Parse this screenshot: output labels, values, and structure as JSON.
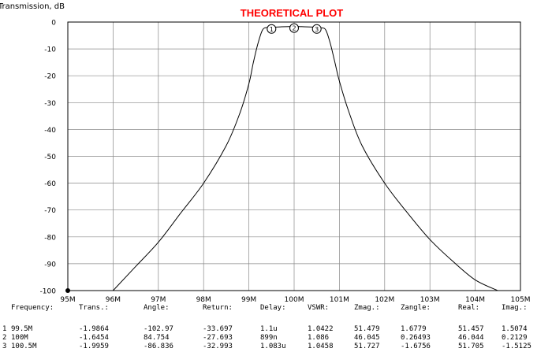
{
  "chart_data": {
    "type": "line",
    "title": "THEORETICAL PLOT",
    "ylabel": "Transmission, dB",
    "xlabel": "",
    "xlim": [
      95,
      105
    ],
    "ylim": [
      -100,
      0
    ],
    "grid": true,
    "x_ticks": [
      "95M",
      "96M",
      "97M",
      "98M",
      "99M",
      "100M",
      "101M",
      "102M",
      "103M",
      "104M",
      "105M"
    ],
    "y_ticks": [
      "0",
      "-10",
      "-20",
      "-30",
      "-40",
      "-50",
      "-60",
      "-70",
      "-80",
      "-90",
      "-100"
    ],
    "series": [
      {
        "color": "#000000",
        "x": [
          96.0,
          96.5,
          97.0,
          97.5,
          98.0,
          98.5,
          98.8,
          99.0,
          99.1,
          99.2,
          99.3,
          99.4,
          99.5,
          99.7,
          100.0,
          100.3,
          100.5,
          100.6,
          100.7,
          100.8,
          100.9,
          101.0,
          101.2,
          101.5,
          102.0,
          102.5,
          103.0,
          103.5,
          104.0,
          104.5
        ],
        "y": [
          -100,
          -91,
          -82,
          -71,
          -60,
          -46,
          -34,
          -23,
          -15,
          -8,
          -3,
          -2,
          -1.99,
          -1.8,
          -1.65,
          -1.8,
          -1.96,
          -2.1,
          -3,
          -8,
          -15,
          -22,
          -33,
          -46,
          -60,
          -71,
          -81,
          -89,
          -96,
          -100
        ]
      }
    ],
    "markers": [
      {
        "label": "1",
        "x": 99.5,
        "y": -1.9864
      },
      {
        "label": "2",
        "x": 100.0,
        "y": -1.6454
      },
      {
        "label": "3",
        "x": 100.5,
        "y": -1.9959
      }
    ]
  },
  "table": {
    "headers": [
      "Frequency:",
      "Trans.:",
      "Angle:",
      "Return:",
      "Delay:",
      "VSWR:",
      "Zmag.:",
      "Zangle:",
      "Real:",
      "Imag.:"
    ],
    "rows": [
      {
        "index": "1",
        "frequency": "99.5M",
        "trans": "-1.9864",
        "angle": "-102.97",
        "return": "-33.697",
        "delay": "1.1u",
        "vswr": "1.0422",
        "zmag": "51.479",
        "zangle": "1.6779",
        "real": "51.457",
        "imag": "1.5074"
      },
      {
        "index": "2",
        "frequency": "100M",
        "trans": "-1.6454",
        "angle": "84.754",
        "return": "-27.693",
        "delay": "899n",
        "vswr": "1.086",
        "zmag": "46.045",
        "zangle": "0.26493",
        "real": "46.044",
        "imag": "0.2129"
      },
      {
        "index": "3",
        "frequency": "100.5M",
        "trans": "-1.9959",
        "angle": "-86.836",
        "return": "-32.993",
        "delay": "1.083u",
        "vswr": "1.0458",
        "zmag": "51.727",
        "zangle": "-1.6756",
        "real": "51.705",
        "imag": "-1.5125"
      }
    ]
  }
}
